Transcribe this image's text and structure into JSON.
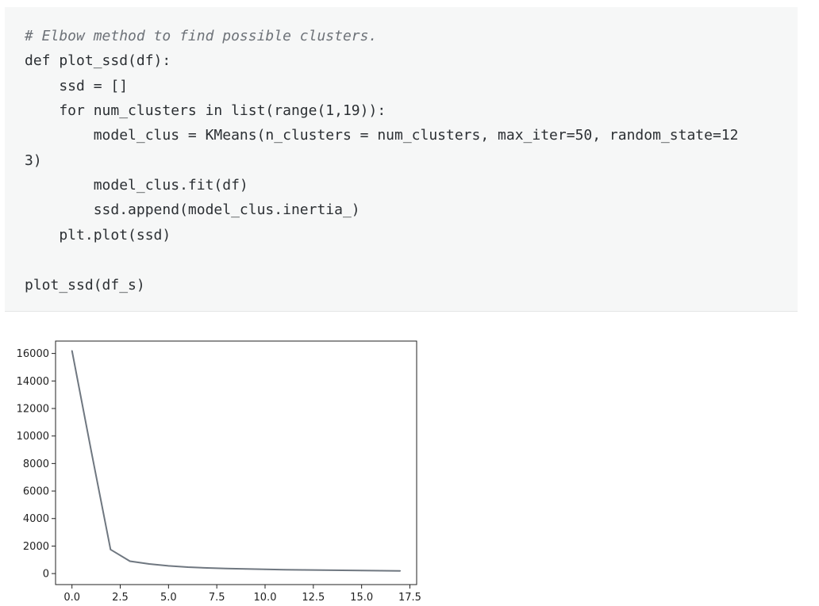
{
  "code_cell": {
    "lines": [
      "# Elbow method to find possible clusters.",
      "def plot_ssd(df):",
      "    ssd = []",
      "    for num_clusters in list(range(1,19)):",
      "        model_clus = KMeans(n_clusters = num_clusters, max_iter=50, random_state=12",
      "3)",
      "        model_clus.fit(df)",
      "        ssd.append(model_clus.inertia_)",
      "    plt.plot(ssd)",
      "",
      "plot_ssd(df_s)"
    ]
  },
  "chart_data": {
    "type": "line",
    "title": "",
    "xlabel": "",
    "ylabel": "",
    "xlim": [
      -0.85,
      17.85
    ],
    "ylim": [
      -800,
      16900
    ],
    "xticks": [
      "0.0",
      "2.5",
      "5.0",
      "7.5",
      "10.0",
      "12.5",
      "15.0",
      "17.5"
    ],
    "yticks": [
      "0",
      "2000",
      "4000",
      "6000",
      "8000",
      "10000",
      "12000",
      "14000",
      "16000"
    ],
    "grid": false,
    "line_color": "#6f7780",
    "series": [
      {
        "x": [
          0,
          1,
          2,
          3,
          4,
          5,
          6,
          7,
          8,
          9,
          10,
          11,
          12,
          13,
          14,
          15,
          16,
          17
        ],
        "values": [
          16200,
          8900,
          1750,
          900,
          700,
          560,
          470,
          410,
          370,
          335,
          305,
          285,
          265,
          250,
          235,
          220,
          210,
          200
        ]
      }
    ]
  }
}
